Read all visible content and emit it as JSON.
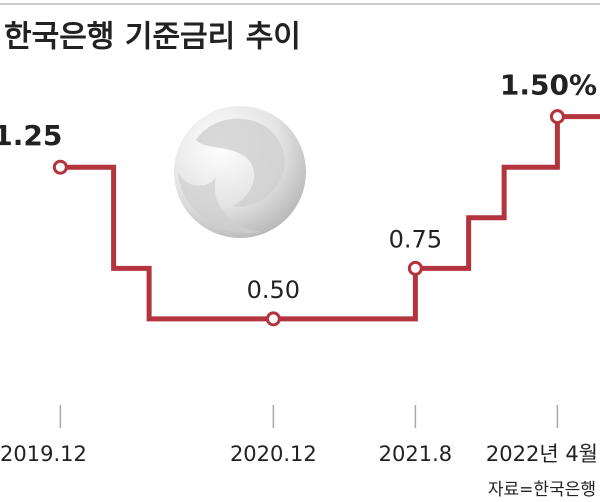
{
  "chart_data": {
    "type": "step",
    "title": "한국은행 기준금리 추이",
    "source": "자료=한국은행",
    "x": [
      0,
      3,
      5,
      12,
      20,
      23,
      25,
      28
    ],
    "values": [
      1.25,
      0.75,
      0.5,
      0.5,
      0.75,
      1.0,
      1.25,
      1.5
    ],
    "value_labels": [
      "1.25",
      null,
      null,
      "0.50",
      "0.75",
      null,
      null,
      "1.50%"
    ],
    "color": "#b3343c",
    "xlim": [
      -3.4,
      30.4
    ],
    "xticks": [
      {
        "value": 0,
        "label": "2019.12"
      },
      {
        "value": 12,
        "label": "2020.12"
      },
      {
        "value": 20,
        "label": "2021.8"
      },
      {
        "value": 28,
        "label": "2022년 4월"
      }
    ],
    "ylim": [
      0,
      1.78
    ]
  }
}
